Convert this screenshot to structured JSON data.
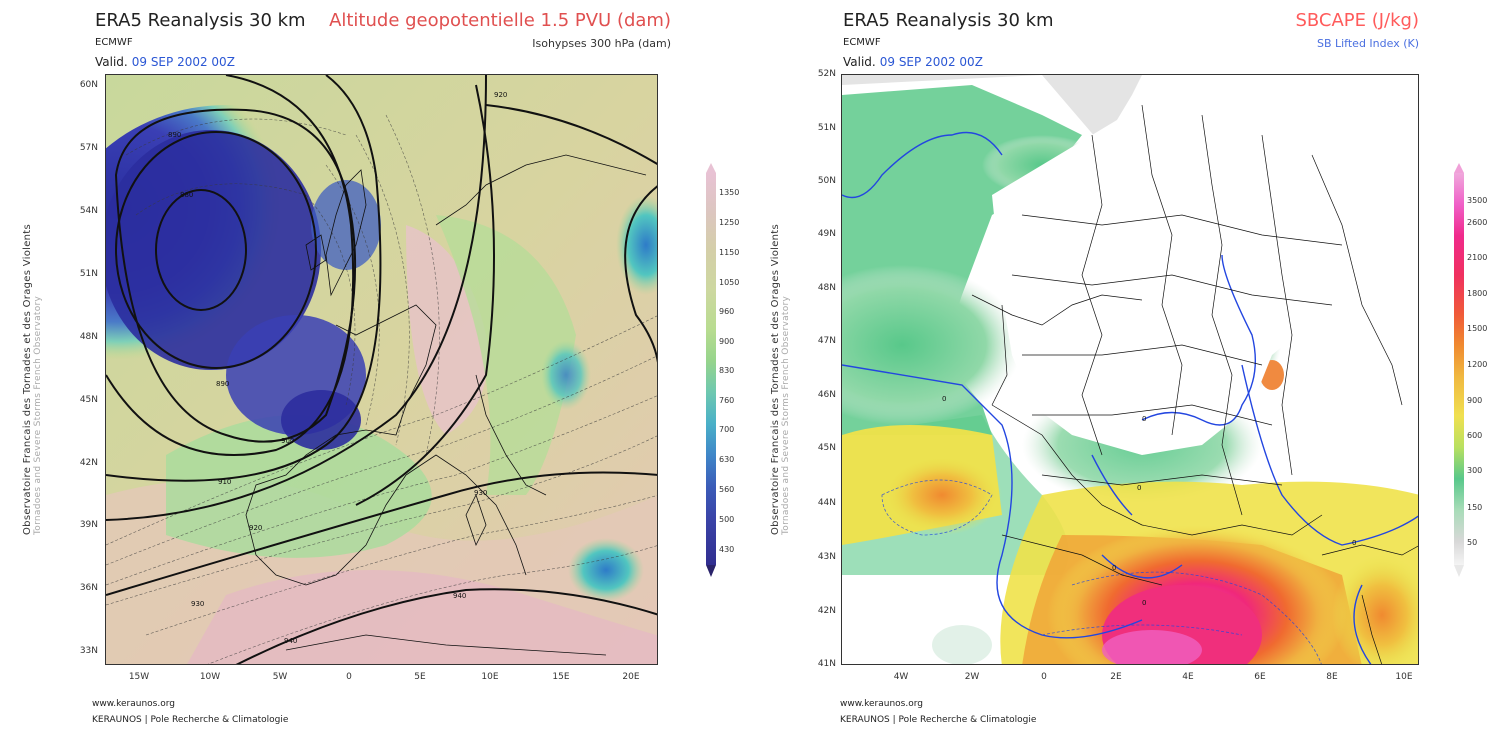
{
  "left": {
    "title": "ERA5 Reanalysis 30 km",
    "org": "ECMWF",
    "valid_prefix": "Valid.",
    "valid_date": "09 SEP 2002 00Z",
    "param": "Altitude geopotentielle 1.5 PVU (dam)",
    "sub": "Isohypses 300 hPa (dam)",
    "lat_labels": [
      "60N",
      "57N",
      "54N",
      "51N",
      "48N",
      "45N",
      "42N",
      "39N",
      "36N",
      "33N"
    ],
    "lon_labels": [
      "15W",
      "10W",
      "5W",
      "0",
      "5E",
      "10E",
      "15E",
      "20E"
    ],
    "contour_labels": [
      "920",
      "890",
      "880",
      "890",
      "900",
      "910",
      "920",
      "930",
      "940",
      "940",
      "930",
      "920"
    ],
    "colorbar_labels": [
      "1350",
      "1250",
      "1150",
      "1050",
      "960",
      "900",
      "830",
      "760",
      "700",
      "630",
      "560",
      "500",
      "430"
    ],
    "colors": {
      "param": "#e05050",
      "sub": "#333333"
    }
  },
  "right": {
    "title": "ERA5 Reanalysis 30 km",
    "org": "ECMWF",
    "valid_prefix": "Valid.",
    "valid_date": "09 SEP 2002 00Z",
    "param": "SBCAPE (J/kg)",
    "sub": "SB Lifted Index (K)",
    "lat_labels": [
      "52N",
      "51N",
      "50N",
      "49N",
      "48N",
      "47N",
      "46N",
      "45N",
      "44N",
      "43N",
      "42N",
      "41N"
    ],
    "lon_labels": [
      "4W",
      "2W",
      "0",
      "2E",
      "4E",
      "6E",
      "8E",
      "10E"
    ],
    "contour_labels": [
      "0",
      "0",
      "0",
      "0",
      "0",
      "0"
    ],
    "colorbar_labels": [
      "3500",
      "2600",
      "2100",
      "1800",
      "1500",
      "1200",
      "900",
      "600",
      "300",
      "150",
      "50"
    ],
    "colors": {
      "param": "#ff5b5b",
      "sub": "#4a6fe0"
    }
  },
  "side_text": {
    "line1": "Observatoire Francais des Tornades et des Orages Violents",
    "line2": "Tornadoes and Severe Storms French Observatory"
  },
  "footer": {
    "url": "www.keraunos.org",
    "credit": "KERAUNOS | Pole Recherche & Climatologie"
  }
}
